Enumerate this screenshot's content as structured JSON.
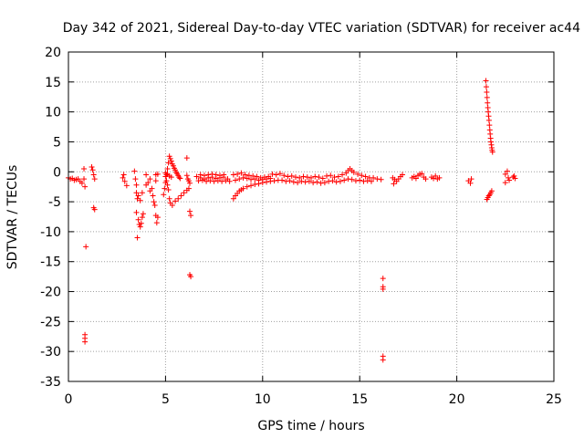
{
  "chart_data": {
    "type": "scatter",
    "title": "Day 342 of 2021, Sidereal Day-to-day VTEC variation (SDTVAR) for receiver ac44",
    "xlabel": "GPS time / hours",
    "ylabel": "SDTVAR / TECUs",
    "xlim": [
      0,
      25
    ],
    "ylim": [
      -35,
      20
    ],
    "x_ticks": [
      0,
      5,
      10,
      15,
      20,
      25
    ],
    "y_ticks": [
      -35,
      -30,
      -25,
      -20,
      -15,
      -10,
      -5,
      0,
      5,
      10,
      15,
      20
    ],
    "x_tick_labels": [
      "0",
      "5",
      "10",
      "15",
      "20",
      "25"
    ],
    "y_tick_labels": [
      "-35",
      "-30",
      "-25",
      "-20",
      "-15",
      "-10",
      "-5",
      "0",
      "5",
      "10",
      "15",
      "20"
    ],
    "grid": true,
    "marker": "+",
    "color": "#ff0000",
    "series": [
      {
        "name": "SDTVAR",
        "points": [
          [
            0.0,
            -1.0
          ],
          [
            0.1,
            -1.2
          ],
          [
            0.2,
            -1.1
          ],
          [
            0.3,
            -1.4
          ],
          [
            0.4,
            -1.3
          ],
          [
            0.5,
            -1.2
          ],
          [
            0.6,
            -1.6
          ],
          [
            0.7,
            -1.9
          ],
          [
            0.8,
            -1.2
          ],
          [
            0.85,
            -2.5
          ],
          [
            0.8,
            0.5
          ],
          [
            0.9,
            -12.5
          ],
          [
            0.85,
            -27.2
          ],
          [
            0.85,
            -27.8
          ],
          [
            0.85,
            -28.4
          ],
          [
            1.2,
            0.8
          ],
          [
            1.25,
            0.3
          ],
          [
            1.3,
            -0.5
          ],
          [
            1.35,
            -1.2
          ],
          [
            1.3,
            -6.0
          ],
          [
            1.35,
            -6.3
          ],
          [
            2.8,
            -1.0
          ],
          [
            2.9,
            -1.6
          ],
          [
            3.0,
            -2.3
          ],
          [
            2.85,
            -0.5
          ],
          [
            3.4,
            0.1
          ],
          [
            3.45,
            -1.2
          ],
          [
            3.5,
            -2.2
          ],
          [
            3.5,
            -3.5
          ],
          [
            3.55,
            -4.5
          ],
          [
            3.5,
            -6.8
          ],
          [
            3.55,
            -11.0
          ],
          [
            3.6,
            -8.0
          ],
          [
            3.65,
            -8.8
          ],
          [
            3.7,
            -9.2
          ],
          [
            3.75,
            -8.6
          ],
          [
            3.8,
            -7.6
          ],
          [
            3.85,
            -7.0
          ],
          [
            3.6,
            -4.0
          ],
          [
            3.7,
            -4.8
          ],
          [
            3.8,
            -3.5
          ],
          [
            4.0,
            -0.5
          ],
          [
            4.0,
            -2.2
          ],
          [
            4.1,
            -1.8
          ],
          [
            4.2,
            -1.2
          ],
          [
            4.3,
            -2.8
          ],
          [
            4.35,
            -4.0
          ],
          [
            4.4,
            -5.0
          ],
          [
            4.45,
            -5.6
          ],
          [
            4.2,
            -3.2
          ],
          [
            4.5,
            -7.3
          ],
          [
            4.55,
            -8.5
          ],
          [
            4.6,
            -7.6
          ],
          [
            4.5,
            -1.5
          ],
          [
            4.5,
            -0.5
          ],
          [
            4.6,
            -0.4
          ],
          [
            4.9,
            -3.8
          ],
          [
            4.95,
            -2.8
          ],
          [
            5.0,
            -1.8
          ],
          [
            5.05,
            -0.5
          ],
          [
            5.1,
            0.5
          ],
          [
            5.15,
            1.5
          ],
          [
            5.2,
            2.6
          ],
          [
            5.25,
            2.2
          ],
          [
            5.3,
            1.8
          ],
          [
            5.35,
            1.3
          ],
          [
            5.4,
            1.0
          ],
          [
            5.45,
            0.6
          ],
          [
            5.5,
            0.3
          ],
          [
            5.55,
            -0.1
          ],
          [
            5.6,
            -0.3
          ],
          [
            5.65,
            -0.6
          ],
          [
            5.7,
            -0.9
          ],
          [
            5.75,
            -1.1
          ],
          [
            5.0,
            -0.8
          ],
          [
            5.05,
            -1.5
          ],
          [
            5.1,
            -2.2
          ],
          [
            5.15,
            -3.0
          ],
          [
            5.2,
            -4.5
          ],
          [
            5.25,
            -5.2
          ],
          [
            5.35,
            -5.6
          ],
          [
            5.5,
            -4.9
          ],
          [
            5.65,
            -4.5
          ],
          [
            5.8,
            -4.0
          ],
          [
            5.95,
            -3.5
          ],
          [
            6.1,
            -3.1
          ],
          [
            6.2,
            -2.8
          ],
          [
            5.0,
            -0.2
          ],
          [
            5.1,
            -0.4
          ],
          [
            5.2,
            -0.7
          ],
          [
            5.3,
            -0.9
          ],
          [
            6.1,
            -0.6
          ],
          [
            6.15,
            -1.2
          ],
          [
            6.2,
            -1.5
          ],
          [
            6.25,
            -1.9
          ],
          [
            6.1,
            2.3
          ],
          [
            6.25,
            -6.6
          ],
          [
            6.3,
            -7.3
          ],
          [
            6.3,
            -17.5
          ],
          [
            6.25,
            -17.2
          ],
          [
            6.6,
            -0.8
          ],
          [
            6.8,
            -1.0
          ],
          [
            7.0,
            -1.2
          ],
          [
            7.2,
            -1.0
          ],
          [
            7.4,
            -0.9
          ],
          [
            7.6,
            -1.1
          ],
          [
            7.8,
            -1.0
          ],
          [
            8.0,
            -0.9
          ],
          [
            8.2,
            -1.2
          ],
          [
            6.7,
            -1.5
          ],
          [
            6.9,
            -1.4
          ],
          [
            7.1,
            -1.6
          ],
          [
            7.3,
            -1.5
          ],
          [
            7.5,
            -1.6
          ],
          [
            7.7,
            -1.5
          ],
          [
            7.9,
            -1.6
          ],
          [
            8.1,
            -1.5
          ],
          [
            8.3,
            -1.6
          ],
          [
            6.8,
            -0.5
          ],
          [
            7.0,
            -0.6
          ],
          [
            7.2,
            -0.5
          ],
          [
            7.4,
            -0.4
          ],
          [
            7.6,
            -0.5
          ],
          [
            7.8,
            -0.6
          ],
          [
            8.0,
            -0.5
          ],
          [
            8.5,
            -4.5
          ],
          [
            8.6,
            -4.0
          ],
          [
            8.7,
            -3.6
          ],
          [
            8.8,
            -3.2
          ],
          [
            8.9,
            -3.0
          ],
          [
            9.0,
            -2.8
          ],
          [
            9.2,
            -2.5
          ],
          [
            9.4,
            -2.3
          ],
          [
            9.6,
            -2.1
          ],
          [
            9.8,
            -2.0
          ],
          [
            10.0,
            -1.8
          ],
          [
            10.2,
            -1.7
          ],
          [
            10.4,
            -1.6
          ],
          [
            10.6,
            -1.5
          ],
          [
            10.8,
            -1.4
          ],
          [
            11.0,
            -1.4
          ],
          [
            8.5,
            -0.5
          ],
          [
            8.7,
            -0.4
          ],
          [
            8.9,
            -0.2
          ],
          [
            9.1,
            -0.5
          ],
          [
            9.3,
            -0.6
          ],
          [
            9.5,
            -0.7
          ],
          [
            9.7,
            -0.8
          ],
          [
            9.9,
            -1.0
          ],
          [
            10.1,
            -0.9
          ],
          [
            10.3,
            -0.8
          ],
          [
            8.6,
            -1.4
          ],
          [
            8.8,
            -1.2
          ],
          [
            9.0,
            -1.0
          ],
          [
            9.2,
            -1.1
          ],
          [
            9.4,
            -1.3
          ],
          [
            9.6,
            -1.2
          ],
          [
            9.8,
            -1.4
          ],
          [
            10.0,
            -1.3
          ],
          [
            10.2,
            -1.2
          ],
          [
            10.4,
            -1.1
          ],
          [
            10.5,
            -0.4
          ],
          [
            10.7,
            -0.5
          ],
          [
            10.9,
            -0.3
          ],
          [
            11.1,
            -0.6
          ],
          [
            11.3,
            -0.8
          ],
          [
            11.5,
            -0.7
          ],
          [
            11.7,
            -0.9
          ],
          [
            11.9,
            -1.0
          ],
          [
            12.1,
            -0.8
          ],
          [
            12.3,
            -0.9
          ],
          [
            12.5,
            -1.0
          ],
          [
            12.7,
            -0.8
          ],
          [
            12.9,
            -0.9
          ],
          [
            13.1,
            -1.1
          ],
          [
            11.2,
            -1.6
          ],
          [
            11.4,
            -1.5
          ],
          [
            11.6,
            -1.7
          ],
          [
            11.8,
            -1.8
          ],
          [
            12.0,
            -1.6
          ],
          [
            12.2,
            -1.7
          ],
          [
            12.4,
            -1.6
          ],
          [
            12.6,
            -1.8
          ],
          [
            12.8,
            -1.7
          ],
          [
            13.0,
            -1.9
          ],
          [
            13.2,
            -1.8
          ],
          [
            13.3,
            -0.7
          ],
          [
            13.5,
            -0.6
          ],
          [
            13.7,
            -0.9
          ],
          [
            13.9,
            -0.8
          ],
          [
            14.1,
            -0.5
          ],
          [
            14.3,
            -0.2
          ],
          [
            14.4,
            0.2
          ],
          [
            14.5,
            0.5
          ],
          [
            14.6,
            0.2
          ],
          [
            14.7,
            -0.1
          ],
          [
            14.9,
            -0.4
          ],
          [
            15.1,
            -0.6
          ],
          [
            15.3,
            -0.8
          ],
          [
            15.5,
            -1.0
          ],
          [
            15.7,
            -1.0
          ],
          [
            15.9,
            -1.2
          ],
          [
            16.1,
            -1.3
          ],
          [
            13.4,
            -1.6
          ],
          [
            13.6,
            -1.5
          ],
          [
            13.8,
            -1.7
          ],
          [
            14.0,
            -1.6
          ],
          [
            14.2,
            -1.4
          ],
          [
            14.4,
            -1.2
          ],
          [
            14.6,
            -1.3
          ],
          [
            14.8,
            -1.5
          ],
          [
            15.0,
            -1.4
          ],
          [
            15.2,
            -1.6
          ],
          [
            15.4,
            -1.5
          ],
          [
            15.6,
            -1.6
          ],
          [
            16.2,
            -17.8
          ],
          [
            16.2,
            -19.2
          ],
          [
            16.2,
            -19.6
          ],
          [
            16.2,
            -30.8
          ],
          [
            16.2,
            -31.4
          ],
          [
            16.7,
            -1.0
          ],
          [
            16.8,
            -1.3
          ],
          [
            16.9,
            -1.6
          ],
          [
            17.0,
            -1.2
          ],
          [
            17.1,
            -0.8
          ],
          [
            17.2,
            -0.5
          ],
          [
            16.75,
            -2.0
          ],
          [
            17.7,
            -1.0
          ],
          [
            17.8,
            -0.8
          ],
          [
            17.9,
            -1.1
          ],
          [
            18.0,
            -0.6
          ],
          [
            18.1,
            -0.4
          ],
          [
            18.2,
            -0.3
          ],
          [
            18.3,
            -0.9
          ],
          [
            18.4,
            -1.2
          ],
          [
            18.7,
            -0.9
          ],
          [
            18.8,
            -1.1
          ],
          [
            18.9,
            -0.7
          ],
          [
            19.0,
            -1.2
          ],
          [
            19.1,
            -1.0
          ],
          [
            20.6,
            -1.5
          ],
          [
            20.7,
            -1.9
          ],
          [
            20.75,
            -1.2
          ],
          [
            21.5,
            15.2
          ],
          [
            21.52,
            14.2
          ],
          [
            21.54,
            13.3
          ],
          [
            21.56,
            12.4
          ],
          [
            21.58,
            11.5
          ],
          [
            21.6,
            10.7
          ],
          [
            21.62,
            10.0
          ],
          [
            21.64,
            9.3
          ],
          [
            21.66,
            8.6
          ],
          [
            21.68,
            7.8
          ],
          [
            21.7,
            7.0
          ],
          [
            21.72,
            6.3
          ],
          [
            21.74,
            5.6
          ],
          [
            21.76,
            5.0
          ],
          [
            21.78,
            4.5
          ],
          [
            21.8,
            4.0
          ],
          [
            21.82,
            3.6
          ],
          [
            21.84,
            3.3
          ],
          [
            21.55,
            -4.6
          ],
          [
            21.6,
            -4.3
          ],
          [
            21.65,
            -4.0
          ],
          [
            21.7,
            -3.8
          ],
          [
            21.75,
            -3.5
          ],
          [
            21.8,
            -3.2
          ],
          [
            22.5,
            -0.4
          ],
          [
            22.6,
            0.1
          ],
          [
            22.65,
            -1.0
          ],
          [
            22.7,
            -1.4
          ],
          [
            22.5,
            -1.8
          ],
          [
            22.9,
            -0.9
          ],
          [
            23.0,
            -1.1
          ],
          [
            22.95,
            -0.7
          ]
        ]
      }
    ]
  }
}
